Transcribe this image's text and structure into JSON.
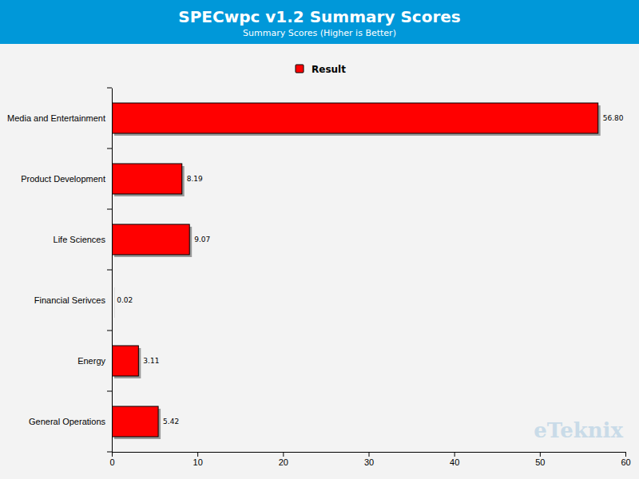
{
  "chart_data": {
    "type": "bar",
    "orientation": "horizontal",
    "title": "SPECwpc v1.2 Summary Scores",
    "subtitle": "Summary Scores (Higher is Better)",
    "categories": [
      "Media and Entertainment",
      "Product Development",
      "Life Sciences",
      "Financial Serivces",
      "Energy",
      "General Operations"
    ],
    "series": [
      {
        "name": "Result",
        "color": "#ff0000",
        "values": [
          56.8,
          8.19,
          9.07,
          0.02,
          3.11,
          5.42
        ],
        "value_labels": [
          "56.80",
          "8.19",
          "9.07",
          "0.02",
          "3.11",
          "5.42"
        ]
      }
    ],
    "xlim": [
      0,
      60
    ],
    "xticks": [
      0,
      10,
      20,
      30,
      40,
      50,
      60
    ],
    "grid": false,
    "legend": "top",
    "data_labels": true,
    "annotations": [
      "eTeknix"
    ]
  }
}
